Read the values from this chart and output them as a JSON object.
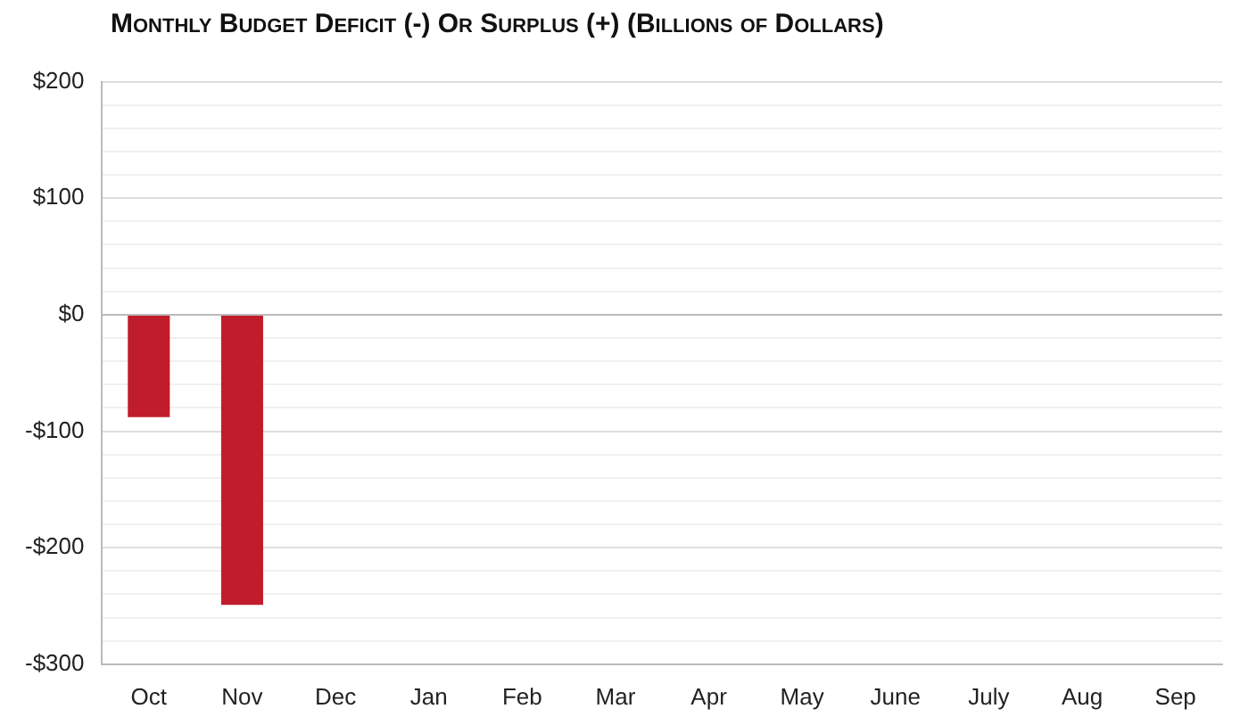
{
  "chart_data": {
    "type": "bar",
    "title": "Monthly Budget Deficit (-) Or Surplus (+) (Billions of Dollars)",
    "categories": [
      "Oct",
      "Nov",
      "Dec",
      "Jan",
      "Feb",
      "Mar",
      "Apr",
      "May",
      "June",
      "July",
      "Aug",
      "Sep"
    ],
    "values": [
      -88,
      -249,
      null,
      null,
      null,
      null,
      null,
      null,
      null,
      null,
      null,
      null
    ],
    "color": "#c01c2c",
    "ylim": [
      -300,
      200
    ],
    "yticks": [
      {
        "value": -300,
        "label": "-$300"
      },
      {
        "value": -280,
        "label": null
      },
      {
        "value": -260,
        "label": null
      },
      {
        "value": -240,
        "label": null
      },
      {
        "value": -220,
        "label": null
      },
      {
        "value": -200,
        "label": "-$200"
      },
      {
        "value": -180,
        "label": null
      },
      {
        "value": -160,
        "label": null
      },
      {
        "value": -140,
        "label": null
      },
      {
        "value": -120,
        "label": null
      },
      {
        "value": -100,
        "label": "-$100"
      },
      {
        "value": -80,
        "label": null
      },
      {
        "value": -60,
        "label": null
      },
      {
        "value": -40,
        "label": null
      },
      {
        "value": -20,
        "label": null
      },
      {
        "value": 0,
        "label": "$0"
      },
      {
        "value": 20,
        "label": null
      },
      {
        "value": 40,
        "label": null
      },
      {
        "value": 60,
        "label": null
      },
      {
        "value": 80,
        "label": null
      },
      {
        "value": 100,
        "label": "$100"
      },
      {
        "value": 120,
        "label": null
      },
      {
        "value": 140,
        "label": null
      },
      {
        "value": 160,
        "label": null
      },
      {
        "value": 180,
        "label": null
      },
      {
        "value": 200,
        "label": "$200"
      }
    ],
    "grid": true
  }
}
